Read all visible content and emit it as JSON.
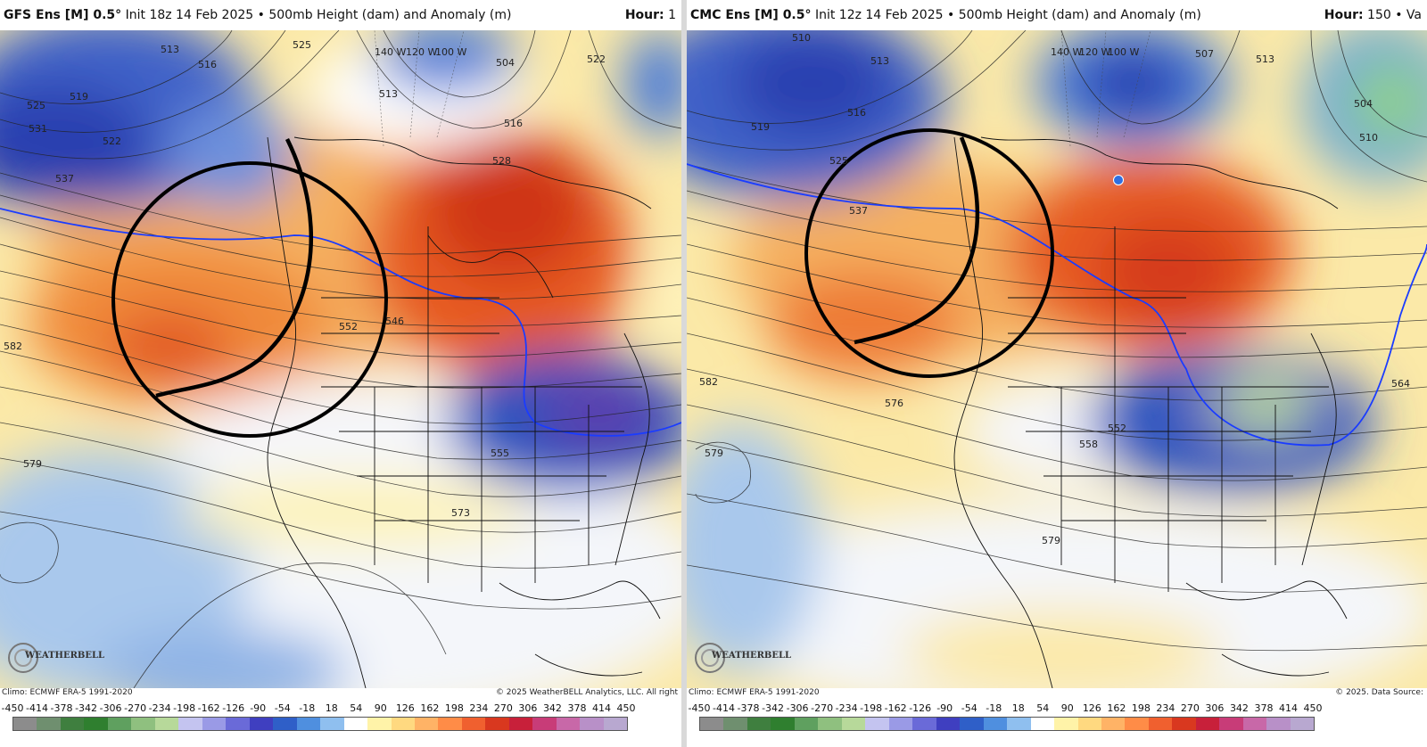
{
  "panels": [
    {
      "id": "gfs",
      "model": "GFS Ens [M] 0.5°",
      "init": "Init 18z 14 Feb 2025",
      "bullet": "•",
      "field": "500mb Height (dam) and Anomaly (m)",
      "hour_label": "Hour:",
      "hour_value": "1",
      "climo": "Climo: ECMWF ERA-5 1991-2020",
      "copyright": "© 2025 WeatherBELL Analytics, LLC. All right",
      "logo": "WEATHERBELL",
      "contour_labels": [
        "513",
        "516",
        "519",
        "522",
        "525",
        "525",
        "531",
        "537",
        "513",
        "140 W",
        "120 W",
        "100 W",
        "504",
        "522",
        "516",
        "528",
        "582",
        "546",
        "552",
        "555",
        "579",
        "573"
      ]
    },
    {
      "id": "cmc",
      "model": "CMC Ens [M] 0.5°",
      "init": "Init 12z 14 Feb 2025",
      "bullet": "•",
      "field": "500mb Height (dam) and Anomaly (m)",
      "hour_label": "Hour:",
      "hour_value": "150 • Va",
      "climo": "Climo: ECMWF ERA-5 1991-2020",
      "copyright": "© 2025. Data Source:",
      "logo": "WEATHERBELL",
      "contour_labels": [
        "510",
        "513",
        "516",
        "519",
        "525",
        "537",
        "140 W",
        "120 W",
        "100 W",
        "507",
        "513",
        "504",
        "510",
        "582",
        "576",
        "552",
        "558",
        "564",
        "579",
        "579"
      ]
    }
  ],
  "colorbar": {
    "ticks": [
      "-450",
      "-414",
      "-378",
      "-342",
      "-306",
      "-270",
      "-234",
      "-198",
      "-162",
      "-126",
      "-90",
      "-54",
      "-18",
      "18",
      "54",
      "90",
      "126",
      "162",
      "198",
      "234",
      "270",
      "306",
      "342",
      "378",
      "414",
      "450"
    ],
    "colors": [
      "#8c8c8c",
      "#6f8f6f",
      "#3f7f3f",
      "#2f7f2f",
      "#5fa05f",
      "#8fc07f",
      "#b7d99a",
      "#c4c4f0",
      "#9a9ae6",
      "#6a6ad8",
      "#3f3fc0",
      "#2f5fc8",
      "#4f8fdf",
      "#8fbfef",
      "#ffffff",
      "#fff3a8",
      "#ffd980",
      "#ffb366",
      "#ff8c47",
      "#f0602f",
      "#d9381f",
      "#c8203a",
      "#c83c78",
      "#c868a8",
      "#b890c8",
      "#b8a8d0"
    ]
  },
  "colors": {
    "blue_contour": "#1a3cff",
    "annotation": "#000000"
  }
}
